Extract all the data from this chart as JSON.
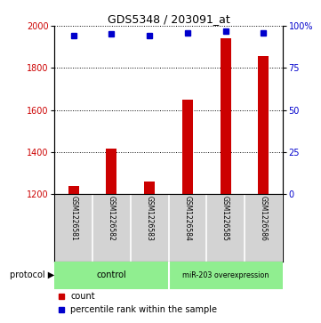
{
  "title": "GDS5348 / 203091_at",
  "samples": [
    "GSM1226581",
    "GSM1226582",
    "GSM1226583",
    "GSM1226584",
    "GSM1226585",
    "GSM1226586"
  ],
  "counts": [
    1240,
    1415,
    1260,
    1650,
    1940,
    1855
  ],
  "percentile_ranks": [
    94,
    95,
    94,
    96,
    97,
    96
  ],
  "ylim_left": [
    1200,
    2000
  ],
  "ylim_right": [
    0,
    100
  ],
  "yticks_left": [
    1200,
    1400,
    1600,
    1800,
    2000
  ],
  "yticks_right": [
    0,
    25,
    50,
    75,
    100
  ],
  "bar_color": "#cc0000",
  "dot_color": "#0000cc",
  "bg_color": "#ffffff",
  "control_color": "#90ee90",
  "overexp_color": "#90ee90",
  "sample_bg_color": "#d3d3d3",
  "legend_bar_label": "count",
  "legend_dot_label": "percentile rank within the sample"
}
